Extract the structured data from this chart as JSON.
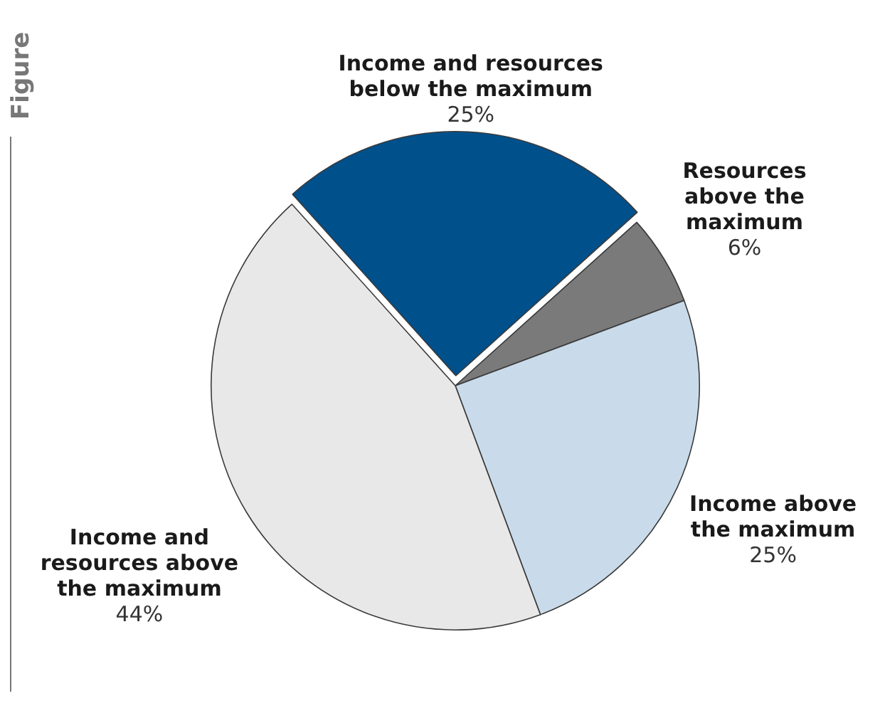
{
  "chart_data": {
    "type": "pie",
    "categories": [
      "Income and resources below the maximum",
      "Resources above the maximum",
      "Income above the maximum",
      "Income and resources above the maximum"
    ],
    "values": [
      25,
      6,
      25,
      44
    ],
    "colors": [
      "#00508c",
      "#7a7a7a",
      "#c9dbea",
      "#e8e8e8"
    ],
    "value_labels": [
      "25%",
      "6%",
      "25%",
      "44%"
    ],
    "annotations": [
      "Figure"
    ],
    "legend": false
  }
}
